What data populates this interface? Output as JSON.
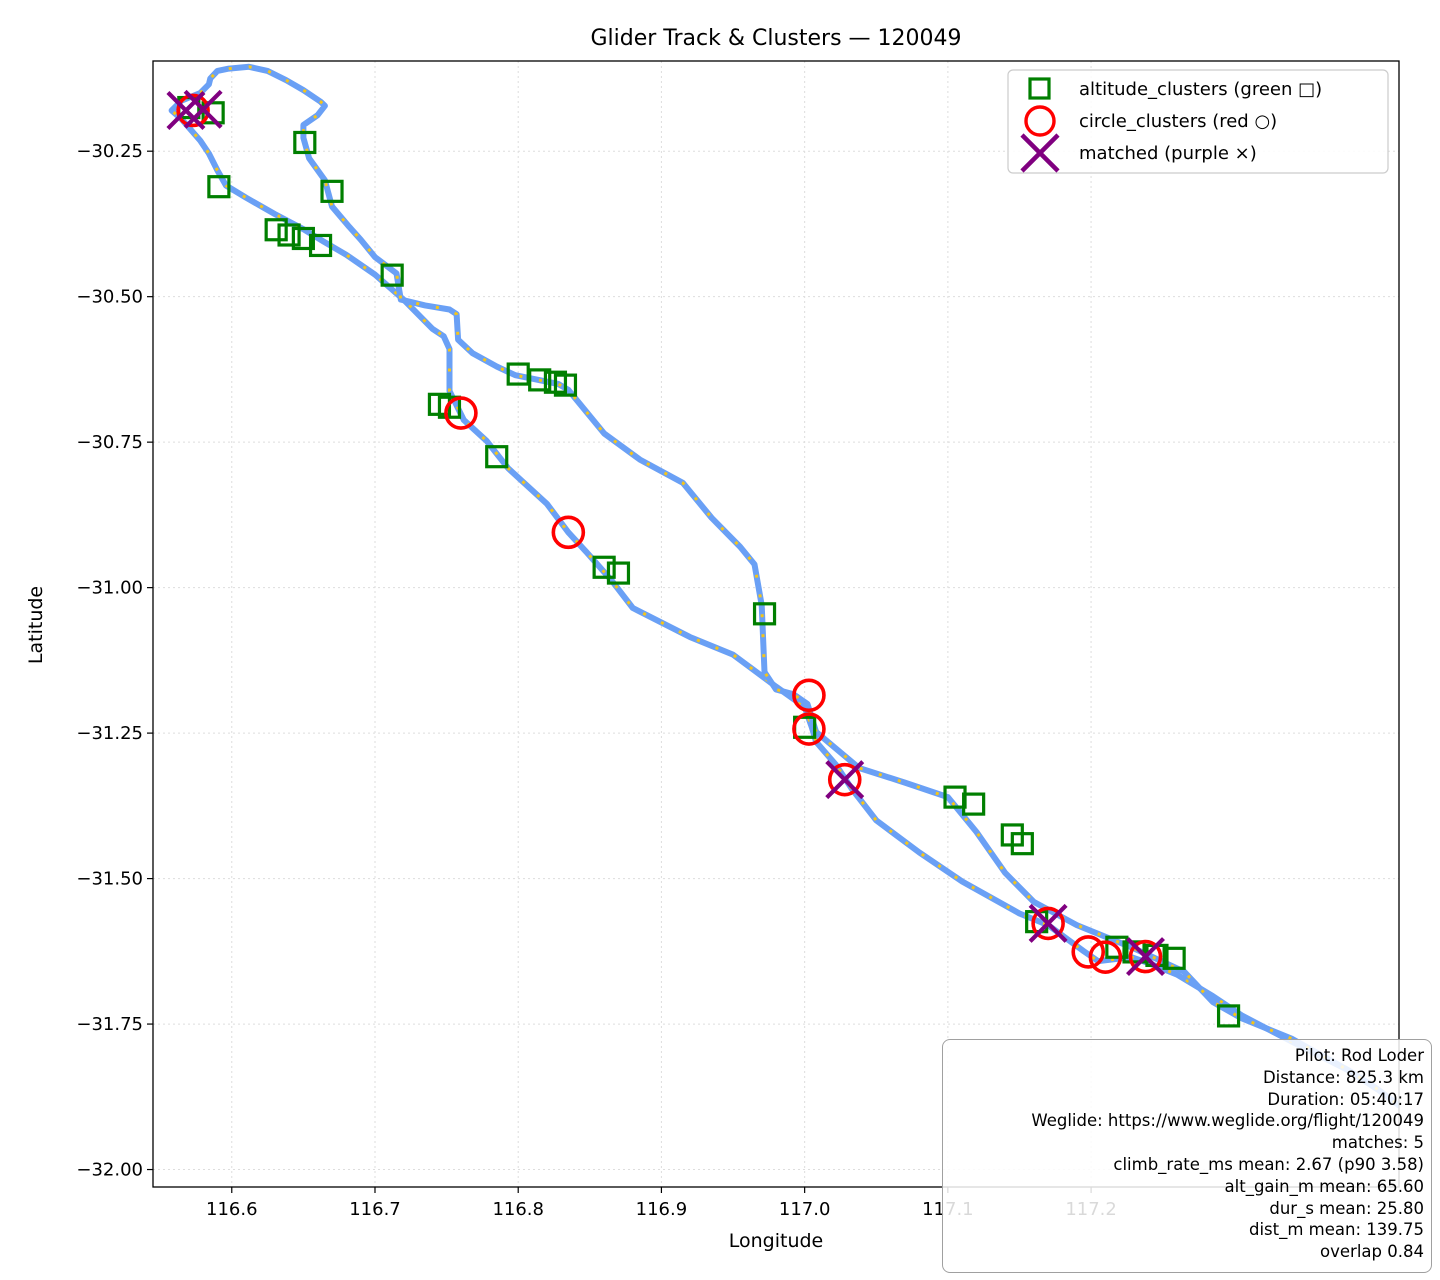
{
  "chart_data": {
    "type": "scatter",
    "title": "Glider Track & Clusters — 120049",
    "xlabel": "Longitude",
    "ylabel": "Latitude",
    "xlim": [
      116.545,
      117.415
    ],
    "ylim": [
      -32.03,
      -30.095
    ],
    "xticks": [
      116.6,
      116.7,
      116.8,
      116.9,
      117.0,
      117.1,
      117.2
    ],
    "xtick_labels": [
      "116.6",
      "116.7",
      "116.8",
      "116.9",
      "117.0",
      "117.1",
      "117.2"
    ],
    "yticks": [
      -30.25,
      -30.5,
      -30.75,
      -31.0,
      -31.25,
      -31.5,
      -31.75,
      -32.0
    ],
    "ytick_labels": [
      "−30.25",
      "−30.50",
      "−30.75",
      "−31.00",
      "−31.25",
      "−31.50",
      "−31.75",
      "−32.00"
    ],
    "grid": true,
    "legend_position": "top-right",
    "colors": {
      "track": "#6aa0f5",
      "track_highlight": "#f5c518",
      "altitude_clusters": "#007f00",
      "circle_clusters": "#ff0000",
      "matched": "#800080",
      "grid": "#dddddd"
    },
    "track": [
      [
        116.565,
        -30.195
      ],
      [
        116.572,
        -30.215
      ],
      [
        116.578,
        -30.232
      ],
      [
        116.584,
        -30.254
      ],
      [
        116.59,
        -30.283
      ],
      [
        116.596,
        -30.309
      ],
      [
        116.61,
        -30.33
      ],
      [
        116.63,
        -30.358
      ],
      [
        116.65,
        -30.384
      ],
      [
        116.664,
        -30.405
      ],
      [
        116.68,
        -30.428
      ],
      [
        116.7,
        -30.462
      ],
      [
        116.72,
        -30.505
      ],
      [
        116.74,
        -30.555
      ],
      [
        116.748,
        -30.568
      ],
      [
        116.752,
        -30.59
      ],
      [
        116.752,
        -30.662
      ],
      [
        116.762,
        -30.712
      ],
      [
        116.778,
        -30.748
      ],
      [
        116.793,
        -30.795
      ],
      [
        116.82,
        -30.856
      ],
      [
        116.835,
        -30.905
      ],
      [
        116.848,
        -30.94
      ],
      [
        116.865,
        -30.987
      ],
      [
        116.88,
        -31.035
      ],
      [
        116.92,
        -31.085
      ],
      [
        116.95,
        -31.115
      ],
      [
        116.98,
        -31.17
      ],
      [
        117.0,
        -31.205
      ],
      [
        117.005,
        -31.24
      ],
      [
        117.008,
        -31.265
      ],
      [
        117.022,
        -31.305
      ],
      [
        117.033,
        -31.346
      ],
      [
        117.05,
        -31.4
      ],
      [
        117.08,
        -31.455
      ],
      [
        117.11,
        -31.505
      ],
      [
        117.15,
        -31.56
      ],
      [
        117.17,
        -31.58
      ],
      [
        117.195,
        -31.625
      ],
      [
        117.205,
        -31.642
      ],
      [
        117.228,
        -31.635
      ],
      [
        117.24,
        -31.645
      ],
      [
        117.26,
        -31.665
      ],
      [
        117.285,
        -31.702
      ],
      [
        117.305,
        -31.735
      ],
      [
        117.34,
        -31.78
      ],
      [
        117.38,
        -31.83
      ],
      [
        117.4,
        -31.862
      ],
      [
        117.415,
        -31.89
      ],
      null,
      [
        117.4,
        -31.862
      ],
      [
        117.38,
        -31.83
      ],
      [
        117.34,
        -31.775
      ],
      [
        117.305,
        -31.74
      ],
      [
        117.285,
        -31.712
      ],
      [
        117.265,
        -31.66
      ],
      [
        117.23,
        -31.62
      ],
      [
        117.19,
        -31.58
      ],
      [
        117.16,
        -31.54
      ],
      [
        117.14,
        -31.49
      ],
      [
        117.12,
        -31.42
      ],
      [
        117.1,
        -31.36
      ],
      [
        117.07,
        -31.335
      ],
      [
        117.038,
        -31.31
      ],
      [
        117.008,
        -31.248
      ],
      [
        117.002,
        -31.2
      ],
      [
        116.992,
        -31.183
      ],
      [
        116.98,
        -31.175
      ],
      [
        116.972,
        -31.145
      ],
      [
        116.97,
        -31.03
      ],
      [
        116.965,
        -30.96
      ],
      [
        116.955,
        -30.93
      ],
      [
        116.935,
        -30.88
      ],
      [
        116.915,
        -30.82
      ],
      [
        116.885,
        -30.78
      ],
      [
        116.86,
        -30.735
      ],
      [
        116.835,
        -30.66
      ],
      [
        116.828,
        -30.65
      ],
      [
        116.798,
        -30.635
      ],
      [
        116.785,
        -30.62
      ],
      [
        116.768,
        -30.597
      ],
      [
        116.758,
        -30.574
      ],
      [
        116.757,
        -30.53
      ],
      [
        116.752,
        -30.522
      ],
      [
        116.735,
        -30.515
      ],
      [
        116.718,
        -30.505
      ],
      [
        116.715,
        -30.46
      ],
      [
        116.7,
        -30.432
      ],
      [
        116.69,
        -30.402
      ],
      [
        116.682,
        -30.38
      ],
      [
        116.67,
        -30.345
      ],
      [
        116.665,
        -30.3
      ],
      [
        116.654,
        -30.262
      ],
      [
        116.65,
        -30.227
      ],
      [
        116.65,
        -30.205
      ],
      [
        116.66,
        -30.188
      ],
      [
        116.665,
        -30.172
      ],
      [
        116.662,
        -30.165
      ],
      [
        116.65,
        -30.145
      ],
      [
        116.638,
        -30.128
      ],
      [
        116.625,
        -30.112
      ],
      [
        116.612,
        -30.105
      ],
      [
        116.598,
        -30.108
      ],
      [
        116.59,
        -30.112
      ],
      [
        116.585,
        -30.125
      ],
      [
        116.584,
        -30.135
      ],
      [
        116.578,
        -30.15
      ],
      [
        116.565,
        -30.163
      ],
      [
        116.558,
        -30.18
      ],
      [
        116.565,
        -30.195
      ]
    ],
    "altitude_clusters": [
      [
        116.587,
        -30.184
      ],
      [
        116.57,
        -30.175
      ],
      [
        116.591,
        -30.311
      ],
      [
        116.651,
        -30.235
      ],
      [
        116.67,
        -30.319
      ],
      [
        116.631,
        -30.385
      ],
      [
        116.64,
        -30.394
      ],
      [
        116.65,
        -30.4
      ],
      [
        116.662,
        -30.412
      ],
      [
        116.712,
        -30.463
      ],
      [
        116.745,
        -30.685
      ],
      [
        116.752,
        -30.69
      ],
      [
        116.785,
        -30.775
      ],
      [
        116.8,
        -30.633
      ],
      [
        116.815,
        -30.643
      ],
      [
        116.826,
        -30.647
      ],
      [
        116.833,
        -30.652
      ],
      [
        116.86,
        -30.965
      ],
      [
        116.87,
        -30.975
      ],
      [
        116.972,
        -31.045
      ],
      [
        117.0,
        -31.24
      ],
      [
        117.105,
        -31.36
      ],
      [
        117.118,
        -31.372
      ],
      [
        117.145,
        -31.425
      ],
      [
        117.152,
        -31.44
      ],
      [
        117.162,
        -31.574
      ],
      [
        117.218,
        -31.618
      ],
      [
        117.23,
        -31.626
      ],
      [
        117.246,
        -31.632
      ],
      [
        117.258,
        -31.637
      ],
      [
        117.296,
        -31.736
      ]
    ],
    "circle_clusters": [
      [
        116.573,
        -30.18
      ],
      [
        116.76,
        -30.7
      ],
      [
        116.835,
        -30.905
      ],
      [
        117.003,
        -31.185
      ],
      [
        117.003,
        -31.243
      ],
      [
        117.028,
        -31.33
      ],
      [
        117.17,
        -31.577
      ],
      [
        117.198,
        -31.626
      ],
      [
        117.21,
        -31.635
      ],
      [
        117.238,
        -31.634
      ]
    ],
    "matched": [
      [
        116.568,
        -30.18
      ],
      [
        116.58,
        -30.178
      ],
      [
        117.028,
        -31.33
      ],
      [
        117.17,
        -31.577
      ],
      [
        117.238,
        -31.634
      ]
    ],
    "legend": [
      {
        "key": "altitude_clusters",
        "label": "altitude_clusters (green □)",
        "marker": "square"
      },
      {
        "key": "circle_clusters",
        "label": "circle_clusters (red ○)",
        "marker": "circle"
      },
      {
        "key": "matched",
        "label": "matched (purple ×)",
        "marker": "x"
      }
    ],
    "annotation_lines": [
      "Pilot: Rod Loder",
      "Distance: 825.3 km",
      "Duration: 05:40:17",
      "Weglide: https://www.weglide.org/flight/120049",
      "matches: 5",
      "climb_rate_ms mean: 2.67 (p90 3.58)",
      "alt_gain_m mean: 65.60",
      "dur_s mean: 25.80",
      "dist_m mean: 139.75",
      "overlap 0.84"
    ]
  }
}
